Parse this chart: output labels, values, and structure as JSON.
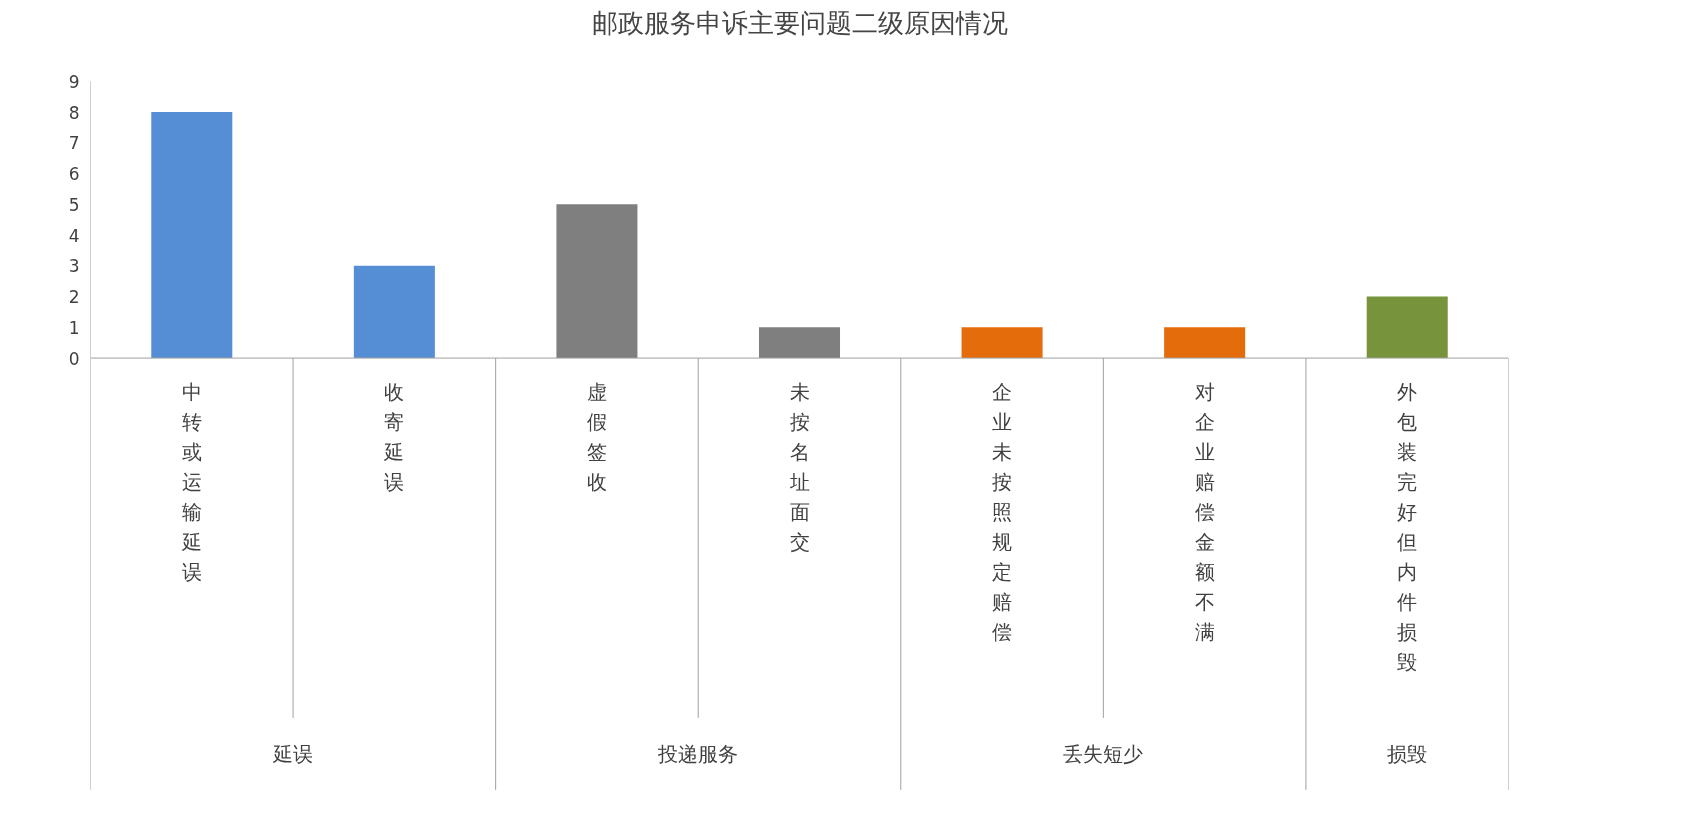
{
  "chart_data": {
    "type": "bar",
    "title": "邮政服务申诉主要问题二级原因情况",
    "categories": [
      "中转或运输延误",
      "收寄延误",
      "虚假签收",
      "未按名址面交",
      "企业未按照规定赔偿",
      "对企业赔偿金额不满",
      "外包装完好但内件损毁"
    ],
    "values": [
      8,
      3,
      5,
      1,
      1,
      1,
      2
    ],
    "colors": [
      "#558ed5",
      "#558ed5",
      "#7f7f7f",
      "#7f7f7f",
      "#e46c0a",
      "#e46c0a",
      "#77933c"
    ],
    "ylim": [
      0,
      9
    ],
    "yticks": [
      0,
      1,
      2,
      3,
      4,
      5,
      6,
      7,
      8,
      9
    ],
    "annotations": [
      "延误",
      "投递服务",
      "丢失短少",
      "损毁"
    ]
  }
}
